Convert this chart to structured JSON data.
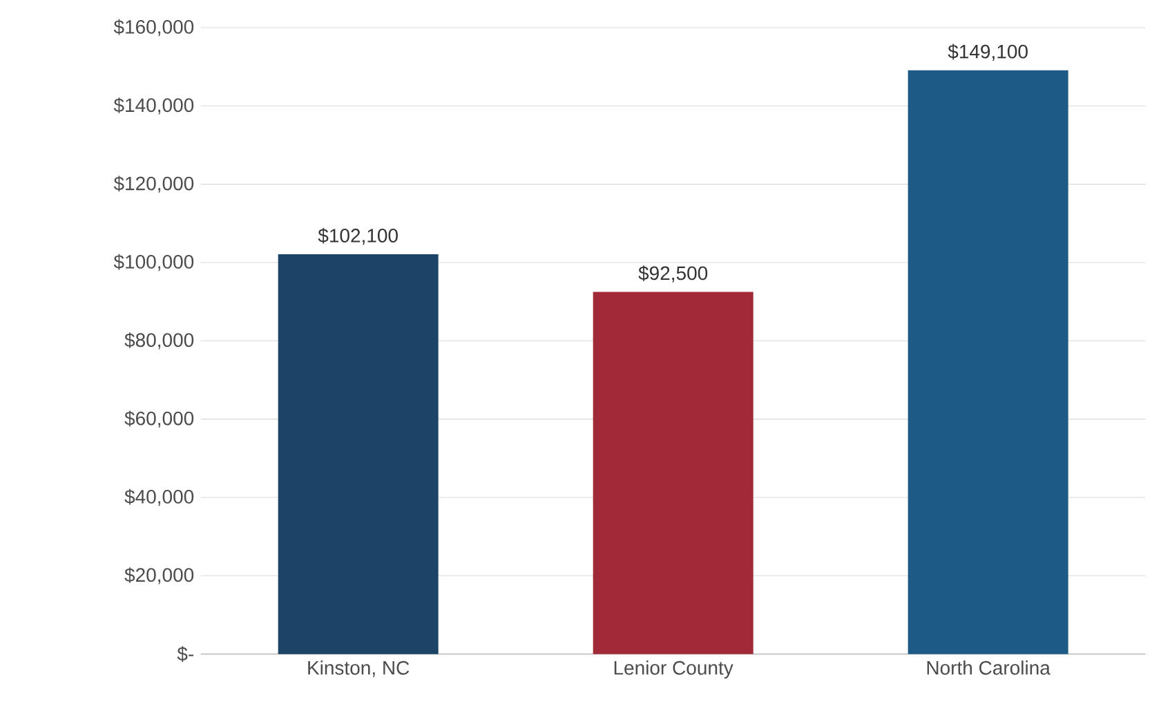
{
  "chart_data": {
    "type": "bar",
    "categories": [
      "Kinston, NC",
      "Lenior County",
      "North Carolina"
    ],
    "values": [
      102100,
      92500,
      149100
    ],
    "colors": [
      "#1d4466",
      "#a12a38",
      "#1d5a85"
    ],
    "value_labels": [
      "$102,100",
      "$92,500",
      "$149,100"
    ],
    "ylim": [
      0,
      160000
    ],
    "yticks": [
      {
        "value": 0,
        "label": "$-"
      },
      {
        "value": 20000,
        "label": "$20,000"
      },
      {
        "value": 40000,
        "label": "$40,000"
      },
      {
        "value": 60000,
        "label": "$60,000"
      },
      {
        "value": 80000,
        "label": "$80,000"
      },
      {
        "value": 100000,
        "label": "$100,000"
      },
      {
        "value": 120000,
        "label": "$120,000"
      },
      {
        "value": 140000,
        "label": "$140,000"
      },
      {
        "value": 160000,
        "label": "$160,000"
      }
    ],
    "grid": "y"
  }
}
